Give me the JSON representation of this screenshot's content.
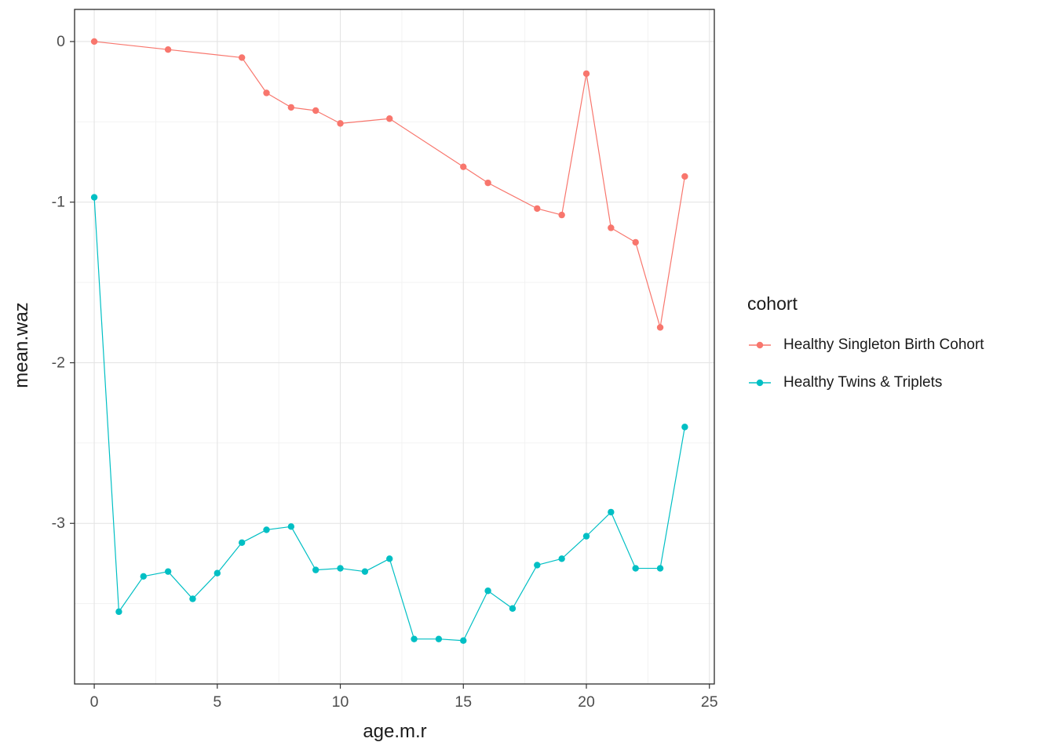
{
  "chart_data": {
    "type": "line",
    "title": "",
    "xlabel": "age.m.r",
    "ylabel": "mean.waz",
    "legend_title": "cohort",
    "legend_position": "right",
    "grid": true,
    "panel_border_color": "#2b2b2b",
    "grid_major_color": "#e4e4e4",
    "grid_minor_color": "#f1f1f1",
    "axis_text_color": "#4d4d4d",
    "xlim": [
      -0.8,
      25.2
    ],
    "ylim": [
      -4.0,
      0.2
    ],
    "x_ticks": [
      0,
      5,
      10,
      15,
      20,
      25
    ],
    "x_tick_labels": [
      "0",
      "5",
      "10",
      "15",
      "20",
      "25"
    ],
    "y_ticks": [
      0,
      -1,
      -2,
      -3
    ],
    "y_tick_labels": [
      "0",
      "-1",
      "-2",
      "-3"
    ],
    "x_minor": [
      2.5,
      7.5,
      12.5,
      17.5,
      22.5
    ],
    "y_minor": [
      -0.5,
      -1.5,
      -2.5,
      -3.5
    ],
    "series": [
      {
        "name": "Healthy Singleton Birth Cohort",
        "color": "#F8766D",
        "x": [
          0,
          3,
          6,
          7,
          8,
          9,
          10,
          12,
          15,
          16,
          18,
          19,
          20,
          21,
          22,
          23,
          24
        ],
        "y": [
          0.0,
          -0.05,
          -0.1,
          -0.32,
          -0.41,
          -0.43,
          -0.51,
          -0.48,
          -0.78,
          -0.88,
          -1.04,
          -1.08,
          -0.2,
          -1.16,
          -1.25,
          -1.78,
          -0.84
        ]
      },
      {
        "name": "Healthy Twins & Triplets",
        "color": "#00BFC4",
        "x": [
          0,
          1,
          2,
          3,
          4,
          5,
          6,
          7,
          8,
          9,
          10,
          11,
          12,
          13,
          14,
          15,
          16,
          17,
          18,
          19,
          20,
          21,
          22,
          23,
          24
        ],
        "y": [
          -0.97,
          -3.55,
          -3.33,
          -3.3,
          -3.47,
          -3.31,
          -3.12,
          -3.04,
          -3.02,
          -3.29,
          -3.28,
          -3.3,
          -3.22,
          -3.72,
          -3.72,
          -3.73,
          -3.42,
          -3.53,
          -3.26,
          -3.22,
          -3.08,
          -2.93,
          -3.28,
          -3.28,
          -2.4
        ]
      }
    ]
  }
}
